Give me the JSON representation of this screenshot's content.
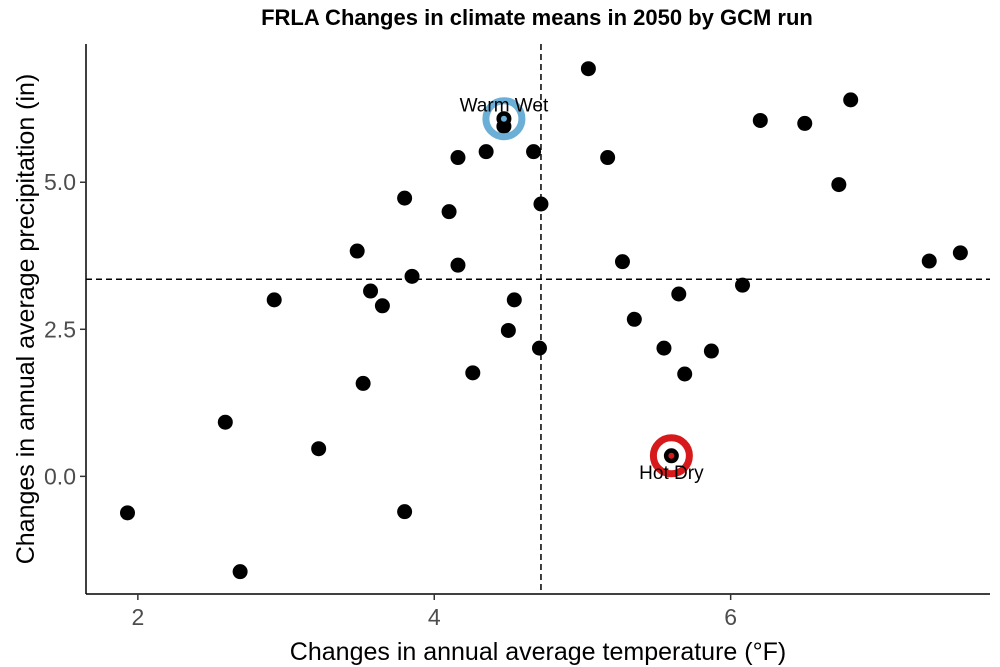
{
  "chart_data": {
    "type": "scatter",
    "title": "FRLA Changes in climate means in 2050 by GCM run",
    "xlabel": "Changes in annual average temperature (°F)",
    "ylabel": "Changes in annual average precipitation (in)",
    "xlim": [
      1.65,
      7.75
    ],
    "ylim": [
      -2.0,
      7.35
    ],
    "xticks": [
      2,
      4,
      6
    ],
    "xtick_labels": [
      "2",
      "4",
      "6"
    ],
    "yticks": [
      0,
      2.5,
      5
    ],
    "ytick_labels": [
      "0.0",
      "2.5",
      "5.0"
    ],
    "grid": false,
    "ref_lines": {
      "x": 4.72,
      "y": 3.35
    },
    "point_color": "#000000",
    "points": [
      {
        "x": 1.93,
        "y": -0.62
      },
      {
        "x": 2.59,
        "y": 0.92
      },
      {
        "x": 2.69,
        "y": -1.62
      },
      {
        "x": 2.92,
        "y": 3.0
      },
      {
        "x": 3.22,
        "y": 0.47
      },
      {
        "x": 3.48,
        "y": 3.83
      },
      {
        "x": 3.52,
        "y": 1.58
      },
      {
        "x": 3.57,
        "y": 3.15
      },
      {
        "x": 3.65,
        "y": 2.9
      },
      {
        "x": 3.8,
        "y": 4.73
      },
      {
        "x": 3.8,
        "y": -0.6
      },
      {
        "x": 3.85,
        "y": 3.4
      },
      {
        "x": 4.1,
        "y": 4.5
      },
      {
        "x": 4.16,
        "y": 5.42
      },
      {
        "x": 4.16,
        "y": 3.59
      },
      {
        "x": 4.26,
        "y": 1.76
      },
      {
        "x": 4.35,
        "y": 5.52
      },
      {
        "x": 4.47,
        "y": 6.08
      },
      {
        "x": 4.47,
        "y": 5.95
      },
      {
        "x": 4.5,
        "y": 2.48
      },
      {
        "x": 4.54,
        "y": 3.0
      },
      {
        "x": 4.67,
        "y": 5.52
      },
      {
        "x": 4.71,
        "y": 2.18
      },
      {
        "x": 4.72,
        "y": 4.63
      },
      {
        "x": 5.04,
        "y": 6.93
      },
      {
        "x": 5.17,
        "y": 5.42
      },
      {
        "x": 5.27,
        "y": 3.65
      },
      {
        "x": 5.35,
        "y": 2.67
      },
      {
        "x": 5.55,
        "y": 2.18
      },
      {
        "x": 5.6,
        "y": 0.35
      },
      {
        "x": 5.65,
        "y": 3.1
      },
      {
        "x": 5.69,
        "y": 1.74
      },
      {
        "x": 5.87,
        "y": 2.13
      },
      {
        "x": 6.08,
        "y": 3.25
      },
      {
        "x": 6.2,
        "y": 6.05
      },
      {
        "x": 6.5,
        "y": 6.0
      },
      {
        "x": 6.73,
        "y": 4.96
      },
      {
        "x": 6.81,
        "y": 6.4
      },
      {
        "x": 7.34,
        "y": 3.66
      },
      {
        "x": 7.55,
        "y": 3.8
      }
    ],
    "highlights": [
      {
        "label": "Warm Wet",
        "x": 4.47,
        "y": 6.08,
        "color": "#6baed6"
      },
      {
        "label": "Hot Dry",
        "x": 5.6,
        "y": 0.35,
        "color": "#d7191c"
      }
    ]
  }
}
